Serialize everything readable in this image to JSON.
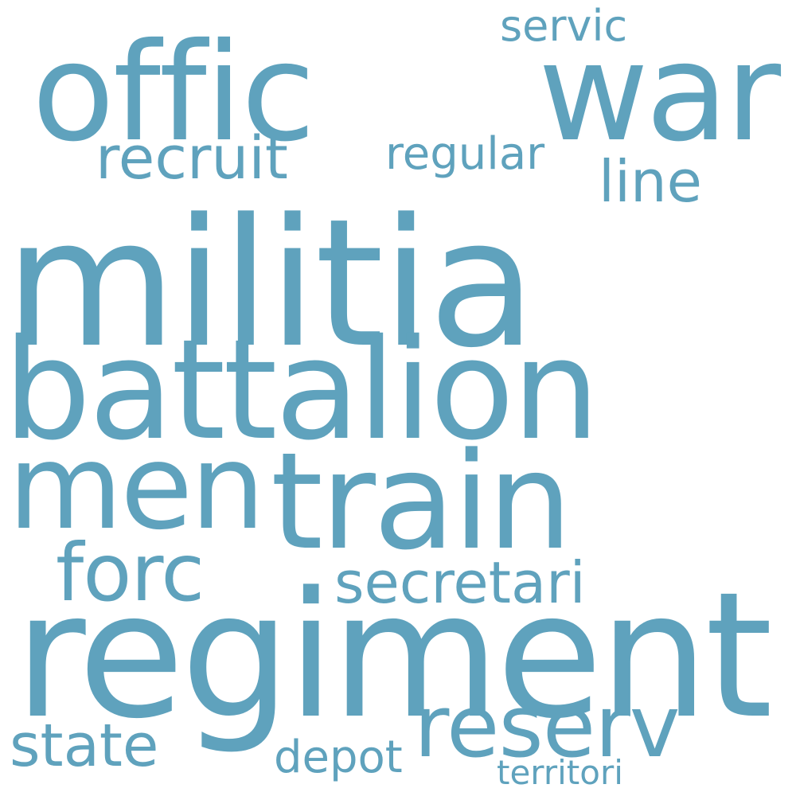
{
  "colors": {
    "background": "#ffffff",
    "word": "#5fa2bd"
  },
  "words": [
    {
      "text": "militia"
    },
    {
      "text": "regiment"
    },
    {
      "text": "battalion"
    },
    {
      "text": "offic"
    },
    {
      "text": "war"
    },
    {
      "text": "men"
    },
    {
      "text": "train"
    },
    {
      "text": "reserv"
    },
    {
      "text": "forc"
    },
    {
      "text": "secretari"
    },
    {
      "text": "recruit"
    },
    {
      "text": "regular"
    },
    {
      "text": "line"
    },
    {
      "text": "state"
    },
    {
      "text": "servic"
    },
    {
      "text": "depot"
    },
    {
      "text": "territori"
    }
  ]
}
